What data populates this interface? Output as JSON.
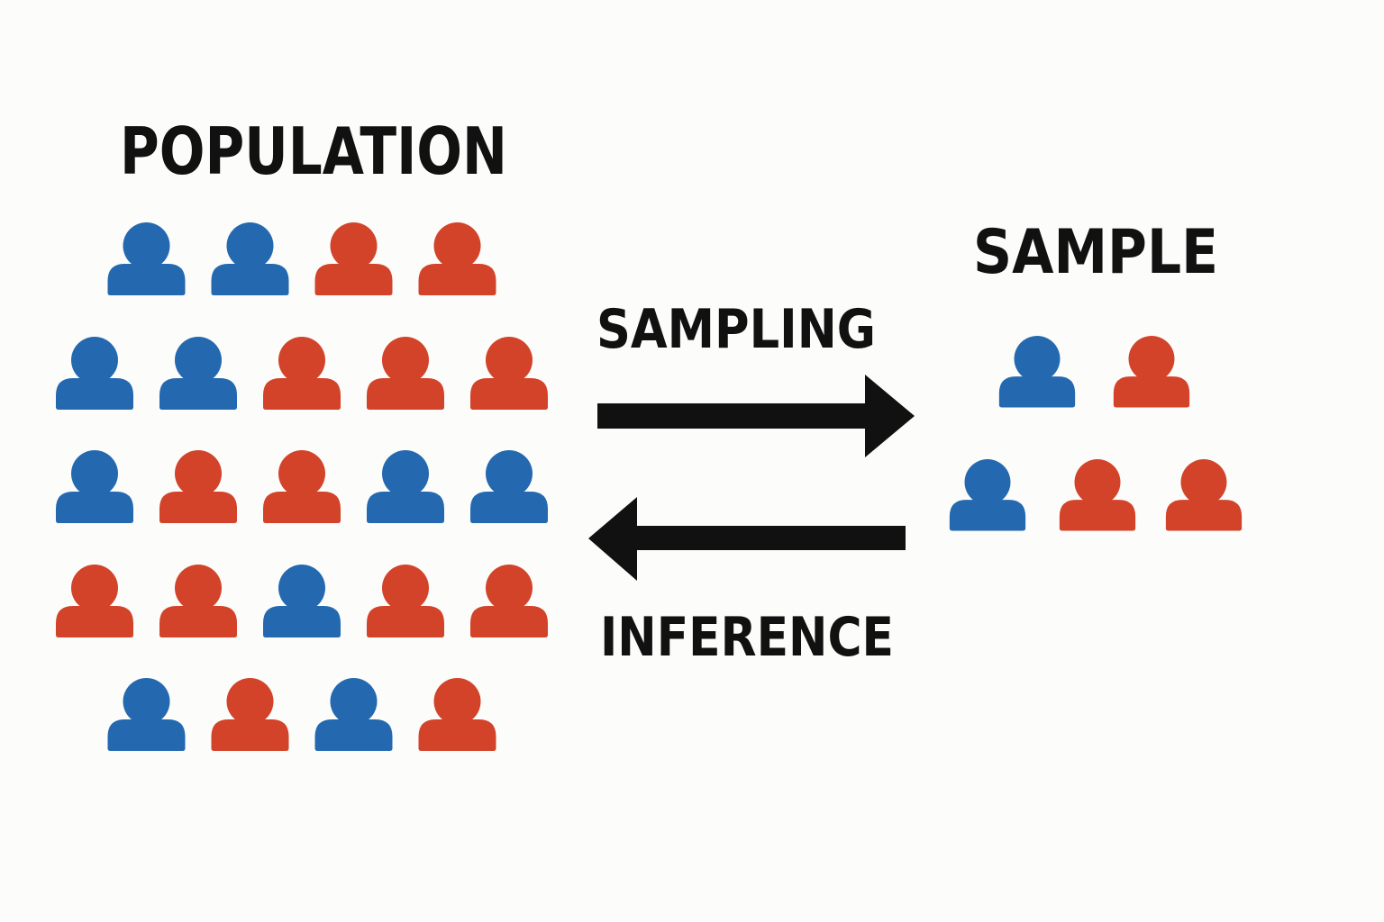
{
  "labels": {
    "population": "POPULATION",
    "sample": "SAMPLE",
    "sampling": "SAMPLING",
    "inference": "INFERENCE"
  },
  "colors": {
    "blue": "#2469b0",
    "red": "#d2432a",
    "arrow": "#111111",
    "background": "#fcfcfa"
  },
  "population": {
    "rows": [
      [
        "blue",
        "blue",
        "red",
        "red"
      ],
      [
        "blue",
        "blue",
        "red",
        "red",
        "red"
      ],
      [
        "blue",
        "red",
        "red",
        "blue",
        "blue"
      ],
      [
        "red",
        "red",
        "blue",
        "red",
        "red"
      ],
      [
        "blue",
        "red",
        "blue",
        "red"
      ]
    ]
  },
  "sample": {
    "rows": [
      [
        "blue",
        "red"
      ],
      [
        "blue",
        "red",
        "red"
      ]
    ]
  },
  "arrows": [
    {
      "name": "sampling-arrow",
      "direction": "right",
      "icon": "right-arrow-icon"
    },
    {
      "name": "inference-arrow",
      "direction": "left",
      "icon": "left-arrow-icon"
    }
  ]
}
